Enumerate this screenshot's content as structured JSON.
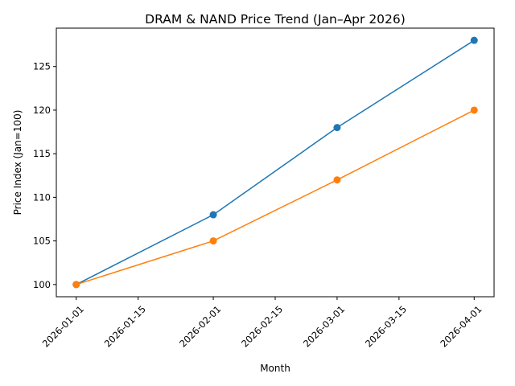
{
  "chart_data": {
    "type": "line",
    "title": "DRAM & NAND Price Trend (Jan–Apr 2026)",
    "xlabel": "Month",
    "ylabel": "Price Index (Jan=100)",
    "x": [
      "2026-01-01",
      "2026-02-01",
      "2026-03-01",
      "2026-04-01"
    ],
    "x_ticks": [
      "2026-01-01",
      "2026-01-15",
      "2026-02-01",
      "2026-02-15",
      "2026-03-01",
      "2026-03-15",
      "2026-04-01"
    ],
    "y_ticks": [
      100,
      105,
      110,
      115,
      120,
      125
    ],
    "ylim": [
      98.6,
      129.4
    ],
    "grid": false,
    "series": [
      {
        "values": [
          100,
          108,
          118,
          128
        ],
        "color": "#1f77b4"
      },
      {
        "values": [
          100,
          105,
          112,
          120
        ],
        "color": "#ff7f0e"
      }
    ]
  }
}
